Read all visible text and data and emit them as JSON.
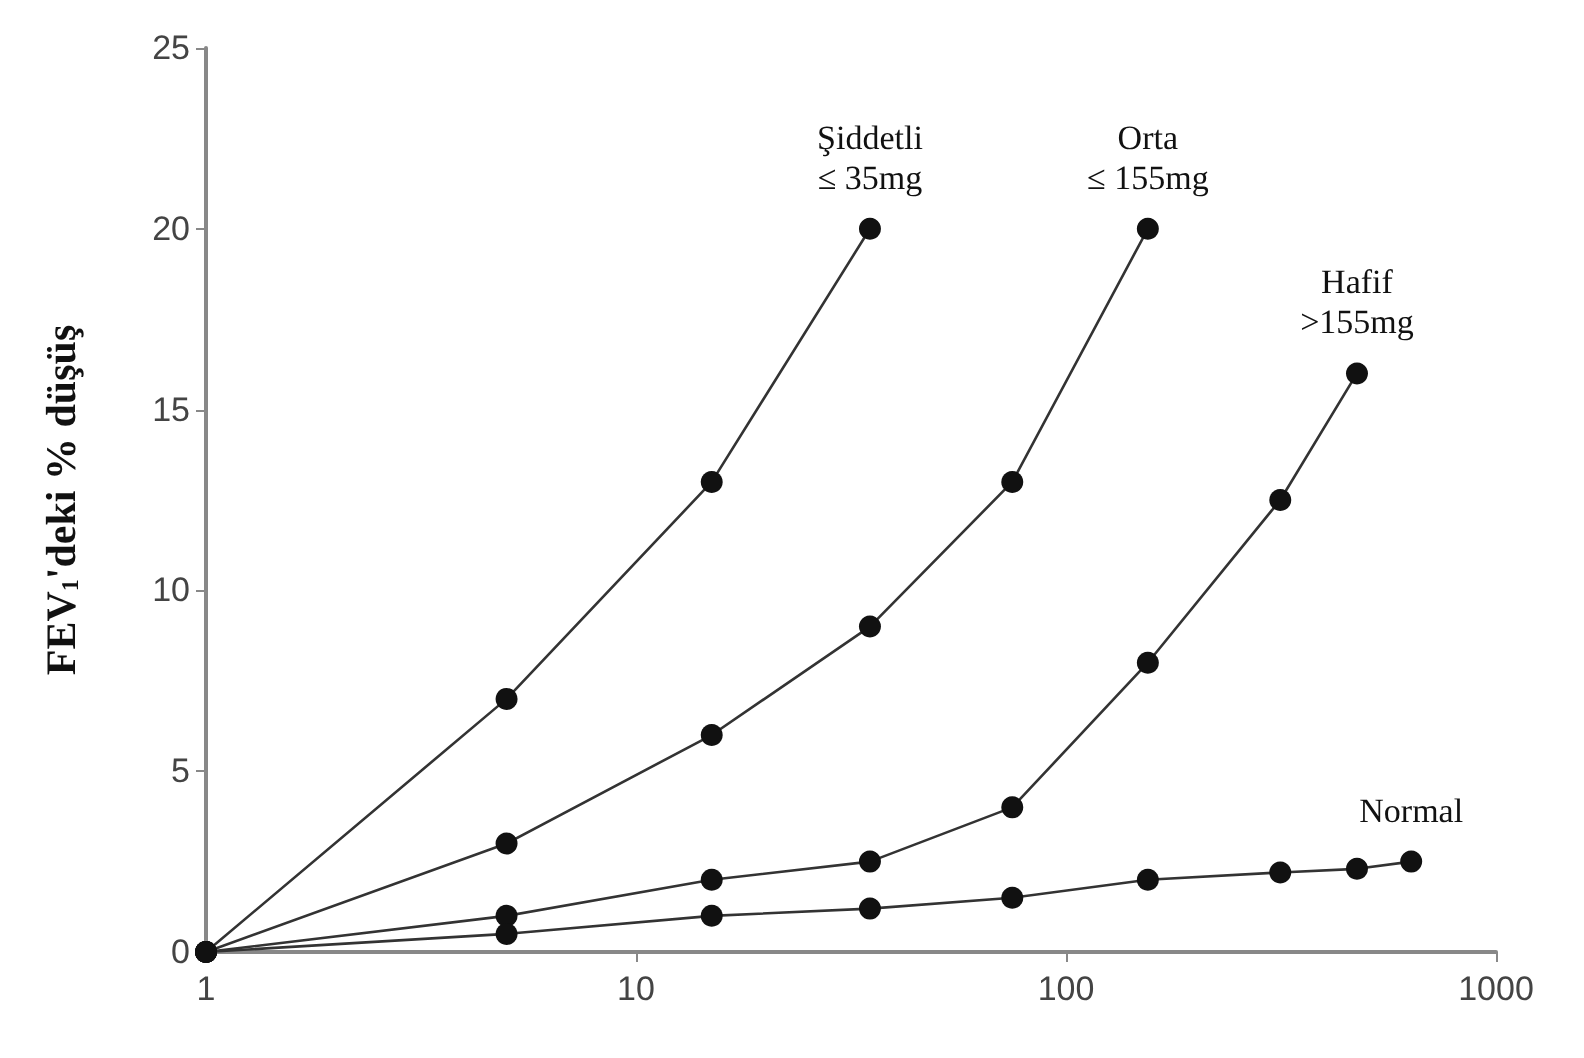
{
  "chart_data": {
    "type": "line",
    "ylabel": "FEV$_{1}$'deki % düşüş",
    "log": "x",
    "xlim": [
      1,
      1000
    ],
    "xticks": [
      1,
      10,
      100,
      1000
    ],
    "ylim": [
      0,
      25
    ],
    "yticks": [
      0,
      5,
      10,
      15,
      20,
      25
    ],
    "grid": false,
    "legend": false,
    "marker": "circle",
    "line_style": "solid",
    "series": [
      {
        "name": "Şiddetli\n≤ 35mg",
        "color": "#111111",
        "x": [
          1,
          5,
          15,
          35
        ],
        "values": [
          0,
          7,
          13,
          20
        ]
      },
      {
        "name": "Orta\n≤ 155mg",
        "color": "#111111",
        "x": [
          1,
          5,
          15,
          35,
          75,
          155
        ],
        "values": [
          0,
          3,
          6,
          9,
          13,
          20
        ]
      },
      {
        "name": "Hafif\n>155mg",
        "color": "#111111",
        "x": [
          1,
          5,
          15,
          35,
          75,
          155,
          315,
          475
        ],
        "values": [
          0,
          1,
          2,
          2.5,
          4,
          8,
          12.5,
          16
        ]
      },
      {
        "name": "Normal",
        "color": "#111111",
        "x": [
          1,
          5,
          15,
          35,
          75,
          155,
          315,
          475,
          635
        ],
        "values": [
          0,
          0.5,
          1,
          1.2,
          1.5,
          2,
          2.2,
          2.3,
          2.5
        ]
      }
    ]
  }
}
